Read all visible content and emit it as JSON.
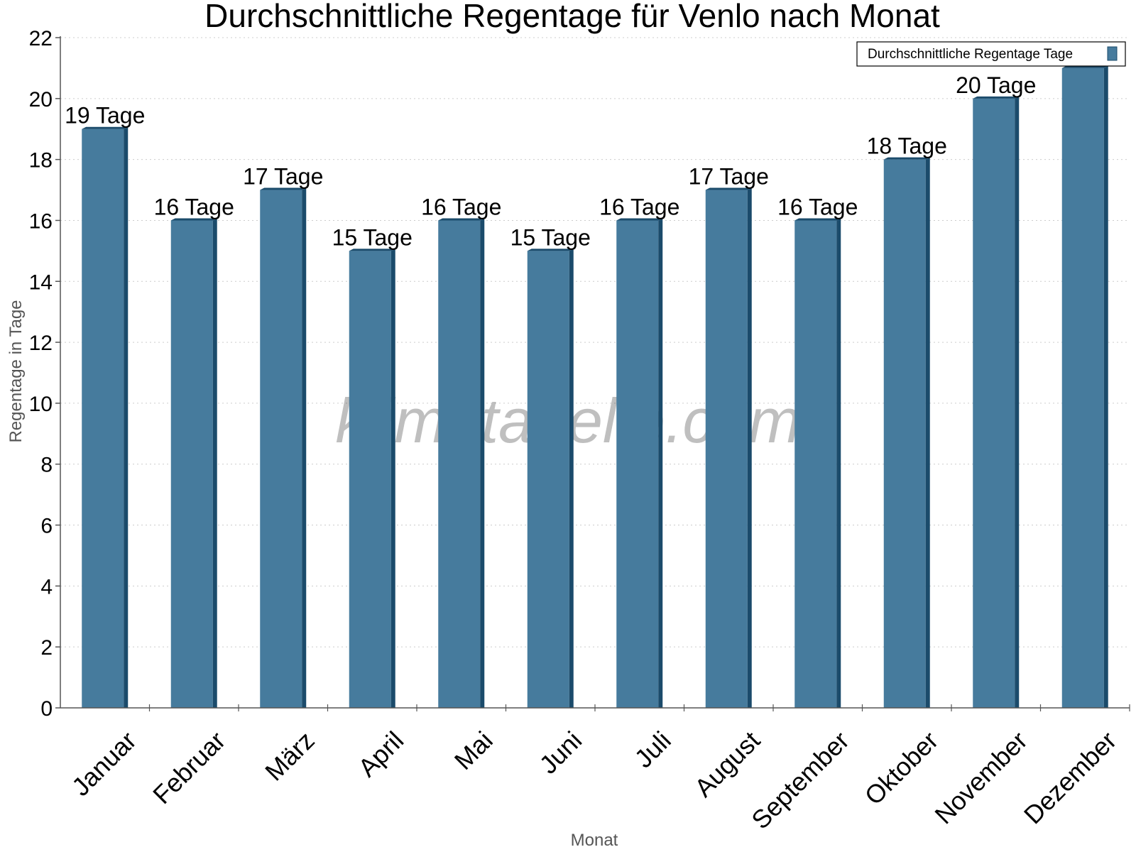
{
  "chart_data": {
    "type": "bar",
    "title": "Durchschnittliche Regentage für Venlo nach Monat",
    "xlabel": "Monat",
    "ylabel": "Regentage in Tage",
    "categories": [
      "Januar",
      "Februar",
      "März",
      "April",
      "Mai",
      "Juni",
      "Juli",
      "August",
      "September",
      "Oktober",
      "November",
      "Dezember"
    ],
    "series": [
      {
        "name": "Durchschnittliche Regentage Tage",
        "values": [
          19,
          16,
          17,
          15,
          16,
          15,
          16,
          17,
          16,
          18,
          20,
          21
        ],
        "data_labels": [
          "19 Tage",
          "16 Tage",
          "17 Tage",
          "15 Tage",
          "16 Tage",
          "15 Tage",
          "16 Tage",
          "17 Tage",
          "16 Tage",
          "18 Tage",
          "20 Tage",
          ""
        ]
      }
    ],
    "ylim": [
      0,
      22
    ],
    "yticks": [
      0,
      2,
      4,
      6,
      8,
      10,
      12,
      14,
      16,
      18,
      20,
      22
    ],
    "grid": true,
    "legend_position": "top-right",
    "colors": {
      "bar": "#467b9d",
      "bar_side": "#1b4b6b",
      "grid": "#cccccc",
      "axis": "#555555"
    }
  },
  "watermark": "klimatabelle.com"
}
